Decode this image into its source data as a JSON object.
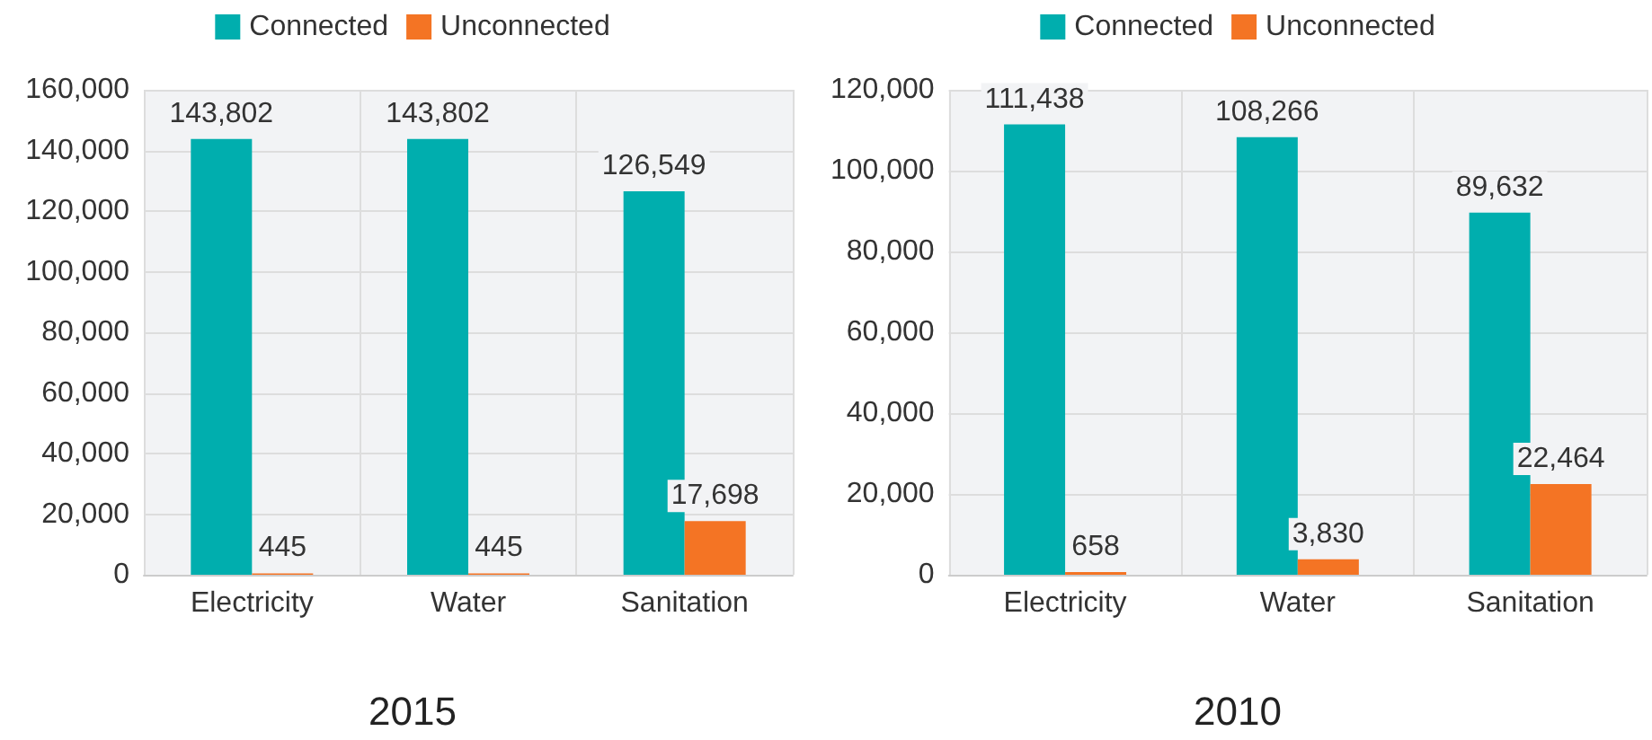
{
  "chart_data": [
    {
      "type": "bar",
      "title": "2015",
      "categories": [
        "Electricity",
        "Water",
        "Sanitation"
      ],
      "series": [
        {
          "name": "Connected",
          "color": "#00aeae",
          "values": [
            143802,
            143802,
            126549
          ],
          "value_labels": [
            "143,802",
            "143,802",
            "126,549"
          ]
        },
        {
          "name": "Unconnected",
          "color": "#f47424",
          "values": [
            445,
            445,
            17698
          ],
          "value_labels": [
            "445",
            "445",
            "17,698"
          ]
        }
      ],
      "ylim": [
        0,
        160000
      ],
      "yticks": [
        0,
        {
          "value": 20000,
          "label": "20,000"
        },
        {
          "value": 40000,
          "label": "40,000"
        },
        {
          "value": 60000,
          "label": "60,000"
        },
        {
          "value": 80000,
          "label": "80,000"
        },
        {
          "value": 100000,
          "label": "100,000"
        },
        {
          "value": 120000,
          "label": "120,000"
        },
        {
          "value": 140000,
          "label": "140,000"
        },
        {
          "value": 160000,
          "label": "160,000"
        }
      ],
      "grid": true,
      "legend": "top"
    },
    {
      "type": "bar",
      "title": "2010",
      "categories": [
        "Electricity",
        "Water",
        "Sanitation"
      ],
      "series": [
        {
          "name": "Connected",
          "color": "#00aeae",
          "values": [
            111438,
            108266,
            89632
          ],
          "value_labels": [
            "111,438",
            "108,266",
            "89,632"
          ]
        },
        {
          "name": "Unconnected",
          "color": "#f47424",
          "values": [
            658,
            3830,
            22464
          ],
          "value_labels": [
            "658",
            "3,830",
            "22,464"
          ]
        }
      ],
      "ylim": [
        0,
        120000
      ],
      "yticks": [
        0,
        {
          "value": 20000,
          "label": "20,000"
        },
        {
          "value": 40000,
          "label": "40,000"
        },
        {
          "value": 60000,
          "label": "60,000"
        },
        {
          "value": 80000,
          "label": "80,000"
        },
        {
          "value": 100000,
          "label": "100,000"
        },
        {
          "value": 120000,
          "label": "120,000"
        }
      ],
      "grid": true,
      "legend": "top"
    }
  ]
}
